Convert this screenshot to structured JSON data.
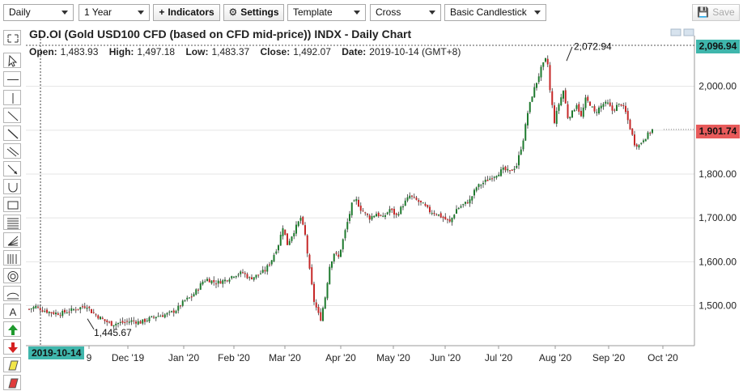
{
  "toolbar": {
    "period": "Daily",
    "range": "1 Year",
    "indicators": "Indicators",
    "settings": "Settings",
    "template": "Template",
    "cursor": "Cross",
    "chart_style": "Basic Candlestick",
    "save": "Save"
  },
  "header": {
    "title": "GD.OI (Gold USD100 CFD (based on CFD mid-price)) INDX - Daily Chart",
    "open_label": "Open:",
    "open": "1,483.93",
    "high_label": "High:",
    "high": "1,497.18",
    "low_label": "Low:",
    "low": "1,483.37",
    "close_label": "Close:",
    "close": "1,492.07",
    "date_label": "Date:",
    "date": "2019-10-14 (GMT+8)"
  },
  "tags": {
    "top_price": "2,096.94",
    "last_price": "1,901.74",
    "cursor_date": "2019-10-14"
  },
  "colors": {
    "accent": "#3fb6ac",
    "last_price": "#e85b5b",
    "up": "#1e7a2e",
    "down": "#c62828"
  },
  "tools": [
    "fit-icon",
    "cursor-icon",
    "hline-icon",
    "vline-icon",
    "trendline-icon",
    "ray-icon",
    "channel-icon",
    "arrow-line-icon",
    "arc-icon",
    "rectangle-icon",
    "fib-retracement-icon",
    "fan-icon",
    "fib-timezones-icon",
    "circles-icon",
    "ellipse-icon",
    "text-icon",
    "up-arrow-icon",
    "down-arrow-icon",
    "highlighter-icon",
    "eraser-icon"
  ],
  "chart_data": {
    "type": "candlestick",
    "title": "GD.OI (Gold USD100 CFD (based on CFD mid-price)) INDX - Daily Chart",
    "y_ticks": [
      "2,000.00",
      "1,900.00",
      "1,800.00",
      "1,700.00",
      "1,600.00",
      "1,500.00"
    ],
    "ylim": [
      1410,
      2115
    ],
    "x_labels": [
      "9",
      "Dec '19",
      "Jan '20",
      "Feb '20",
      "Mar '20",
      "Apr '20",
      "May '20",
      "Jun '20",
      "Jul '20",
      "Aug '20",
      "Sep '20",
      "Oct '20"
    ],
    "annotations": [
      {
        "label": "2,072.94",
        "value": 2072.94,
        "date": "Aug '20"
      },
      {
        "label": "1,445.67",
        "value": 1445.67,
        "date": "Nov '19"
      }
    ],
    "reference_lines": [
      2096.94,
      1901.74
    ],
    "close_path": [
      [
        0,
        1492
      ],
      [
        3,
        1498
      ],
      [
        6,
        1490
      ],
      [
        10,
        1484
      ],
      [
        14,
        1482
      ],
      [
        18,
        1488
      ],
      [
        22,
        1494
      ],
      [
        26,
        1500
      ],
      [
        28,
        1486
      ],
      [
        31,
        1475
      ],
      [
        34,
        1465
      ],
      [
        37,
        1458
      ],
      [
        40,
        1460
      ],
      [
        43,
        1462
      ],
      [
        46,
        1465
      ],
      [
        50,
        1462
      ],
      [
        54,
        1470
      ],
      [
        57,
        1476
      ],
      [
        60,
        1478
      ],
      [
        63,
        1482
      ],
      [
        66,
        1490
      ],
      [
        70,
        1512
      ],
      [
        73,
        1520
      ],
      [
        76,
        1540
      ],
      [
        78,
        1555
      ],
      [
        80,
        1560
      ],
      [
        84,
        1552
      ],
      [
        88,
        1558
      ],
      [
        92,
        1570
      ],
      [
        96,
        1575
      ],
      [
        99,
        1562
      ],
      [
        102,
        1568
      ],
      [
        106,
        1580
      ],
      [
        109,
        1605
      ],
      [
        112,
        1640
      ],
      [
        114,
        1680
      ],
      [
        116,
        1640
      ],
      [
        118,
        1660
      ],
      [
        120,
        1680
      ],
      [
        122,
        1700
      ],
      [
        124,
        1660
      ],
      [
        126,
        1580
      ],
      [
        128,
        1510
      ],
      [
        130,
        1480
      ],
      [
        131,
        1470
      ],
      [
        133,
        1520
      ],
      [
        135,
        1590
      ],
      [
        137,
        1620
      ],
      [
        139,
        1610
      ],
      [
        141,
        1650
      ],
      [
        143,
        1690
      ],
      [
        145,
        1730
      ],
      [
        147,
        1740
      ],
      [
        149,
        1720
      ],
      [
        151,
        1710
      ],
      [
        153,
        1700
      ],
      [
        156,
        1710
      ],
      [
        159,
        1700
      ],
      [
        162,
        1720
      ],
      [
        165,
        1705
      ],
      [
        168,
        1730
      ],
      [
        171,
        1750
      ],
      [
        174,
        1740
      ],
      [
        177,
        1730
      ],
      [
        180,
        1715
      ],
      [
        183,
        1710
      ],
      [
        186,
        1700
      ],
      [
        189,
        1690
      ],
      [
        192,
        1720
      ],
      [
        195,
        1730
      ],
      [
        198,
        1740
      ],
      [
        201,
        1770
      ],
      [
        204,
        1780
      ],
      [
        207,
        1790
      ],
      [
        210,
        1800
      ],
      [
        213,
        1810
      ],
      [
        216,
        1805
      ],
      [
        219,
        1820
      ],
      [
        222,
        1880
      ],
      [
        224,
        1940
      ],
      [
        226,
        1980
      ],
      [
        228,
        2010
      ],
      [
        230,
        2040
      ],
      [
        232,
        2060
      ],
      [
        233,
        2050
      ],
      [
        234,
        1990
      ],
      [
        236,
        1920
      ],
      [
        238,
        1960
      ],
      [
        240,
        1990
      ],
      [
        242,
        1930
      ],
      [
        244,
        1940
      ],
      [
        246,
        1960
      ],
      [
        248,
        1930
      ],
      [
        250,
        1970
      ],
      [
        252,
        1960
      ],
      [
        254,
        1940
      ],
      [
        256,
        1950
      ],
      [
        258,
        1960
      ],
      [
        260,
        1960
      ],
      [
        262,
        1945
      ],
      [
        264,
        1955
      ],
      [
        266,
        1960
      ],
      [
        268,
        1940
      ],
      [
        270,
        1905
      ],
      [
        272,
        1870
      ],
      [
        274,
        1865
      ],
      [
        276,
        1880
      ],
      [
        278,
        1890
      ],
      [
        280,
        1901
      ]
    ],
    "grid": true
  }
}
